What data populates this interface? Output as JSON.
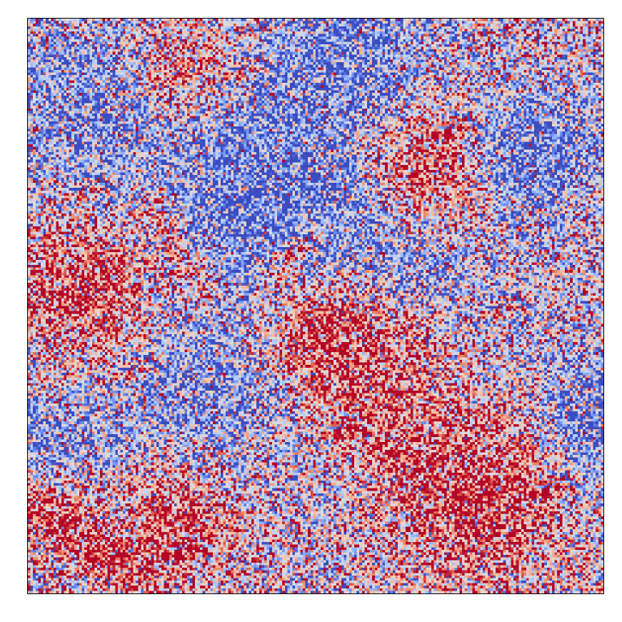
{
  "chart_data": {
    "type": "heatmap",
    "title": "",
    "xlabel": "",
    "ylabel": "",
    "show_ticks": false,
    "grid": false,
    "legend": "none",
    "colormap": "coolwarm",
    "colormap_stops": [
      "#3b4cc0",
      "#7396f5",
      "#b0cbfc",
      "#dddcdc",
      "#f6bfa6",
      "#ea7b60",
      "#b40426"
    ],
    "grid_size": [
      224,
      224
    ],
    "value_range": [
      -1,
      1
    ],
    "noise_level": 0.75,
    "field_components": [
      {
        "cx": 0.42,
        "cy": 0.32,
        "radius": 0.11,
        "amplitude": -1.0
      },
      {
        "cx": 0.88,
        "cy": 0.24,
        "radius": 0.07,
        "amplitude": -0.95
      },
      {
        "cx": 0.7,
        "cy": 0.27,
        "radius": 0.07,
        "amplitude": 0.95
      },
      {
        "cx": 0.09,
        "cy": 0.47,
        "radius": 0.08,
        "amplitude": 0.9
      },
      {
        "cx": 0.51,
        "cy": 0.54,
        "radius": 0.08,
        "amplitude": 0.9
      },
      {
        "cx": 0.79,
        "cy": 0.83,
        "radius": 0.1,
        "amplitude": 1.0
      },
      {
        "cx": 0.26,
        "cy": 0.88,
        "radius": 0.07,
        "amplitude": 0.8
      },
      {
        "cx": 0.55,
        "cy": 0.05,
        "radius": 0.1,
        "amplitude": -0.7
      },
      {
        "cx": 0.1,
        "cy": 0.15,
        "radius": 0.1,
        "amplitude": -0.6
      },
      {
        "cx": 0.33,
        "cy": 0.65,
        "radius": 0.1,
        "amplitude": -0.55
      },
      {
        "cx": 0.03,
        "cy": 0.75,
        "radius": 0.08,
        "amplitude": -0.6
      },
      {
        "cx": 0.99,
        "cy": 0.7,
        "radius": 0.08,
        "amplitude": -0.8
      },
      {
        "cx": 0.62,
        "cy": 0.62,
        "radius": 0.09,
        "amplitude": 0.5
      },
      {
        "cx": 0.27,
        "cy": 0.08,
        "radius": 0.06,
        "amplitude": 0.55
      },
      {
        "cx": 0.66,
        "cy": 0.42,
        "radius": 0.1,
        "amplitude": -0.45
      },
      {
        "cx": 0.05,
        "cy": 0.85,
        "radius": 0.06,
        "amplitude": 0.6
      }
    ],
    "ridges": [
      {
        "x1": 0.0,
        "y1": 0.84,
        "x2": 0.19,
        "y2": 0.97,
        "width": 0.025,
        "amplitude": 0.7
      },
      {
        "x1": 0.22,
        "y1": 0.33,
        "x2": 0.3,
        "y2": 0.48,
        "width": 0.02,
        "amplitude": 0.5
      },
      {
        "x1": 0.43,
        "y1": 0.44,
        "x2": 0.5,
        "y2": 0.36,
        "width": 0.02,
        "amplitude": 0.6
      },
      {
        "x1": 0.58,
        "y1": 0.73,
        "x2": 0.66,
        "y2": 0.78,
        "width": 0.025,
        "amplitude": 0.5
      }
    ]
  }
}
